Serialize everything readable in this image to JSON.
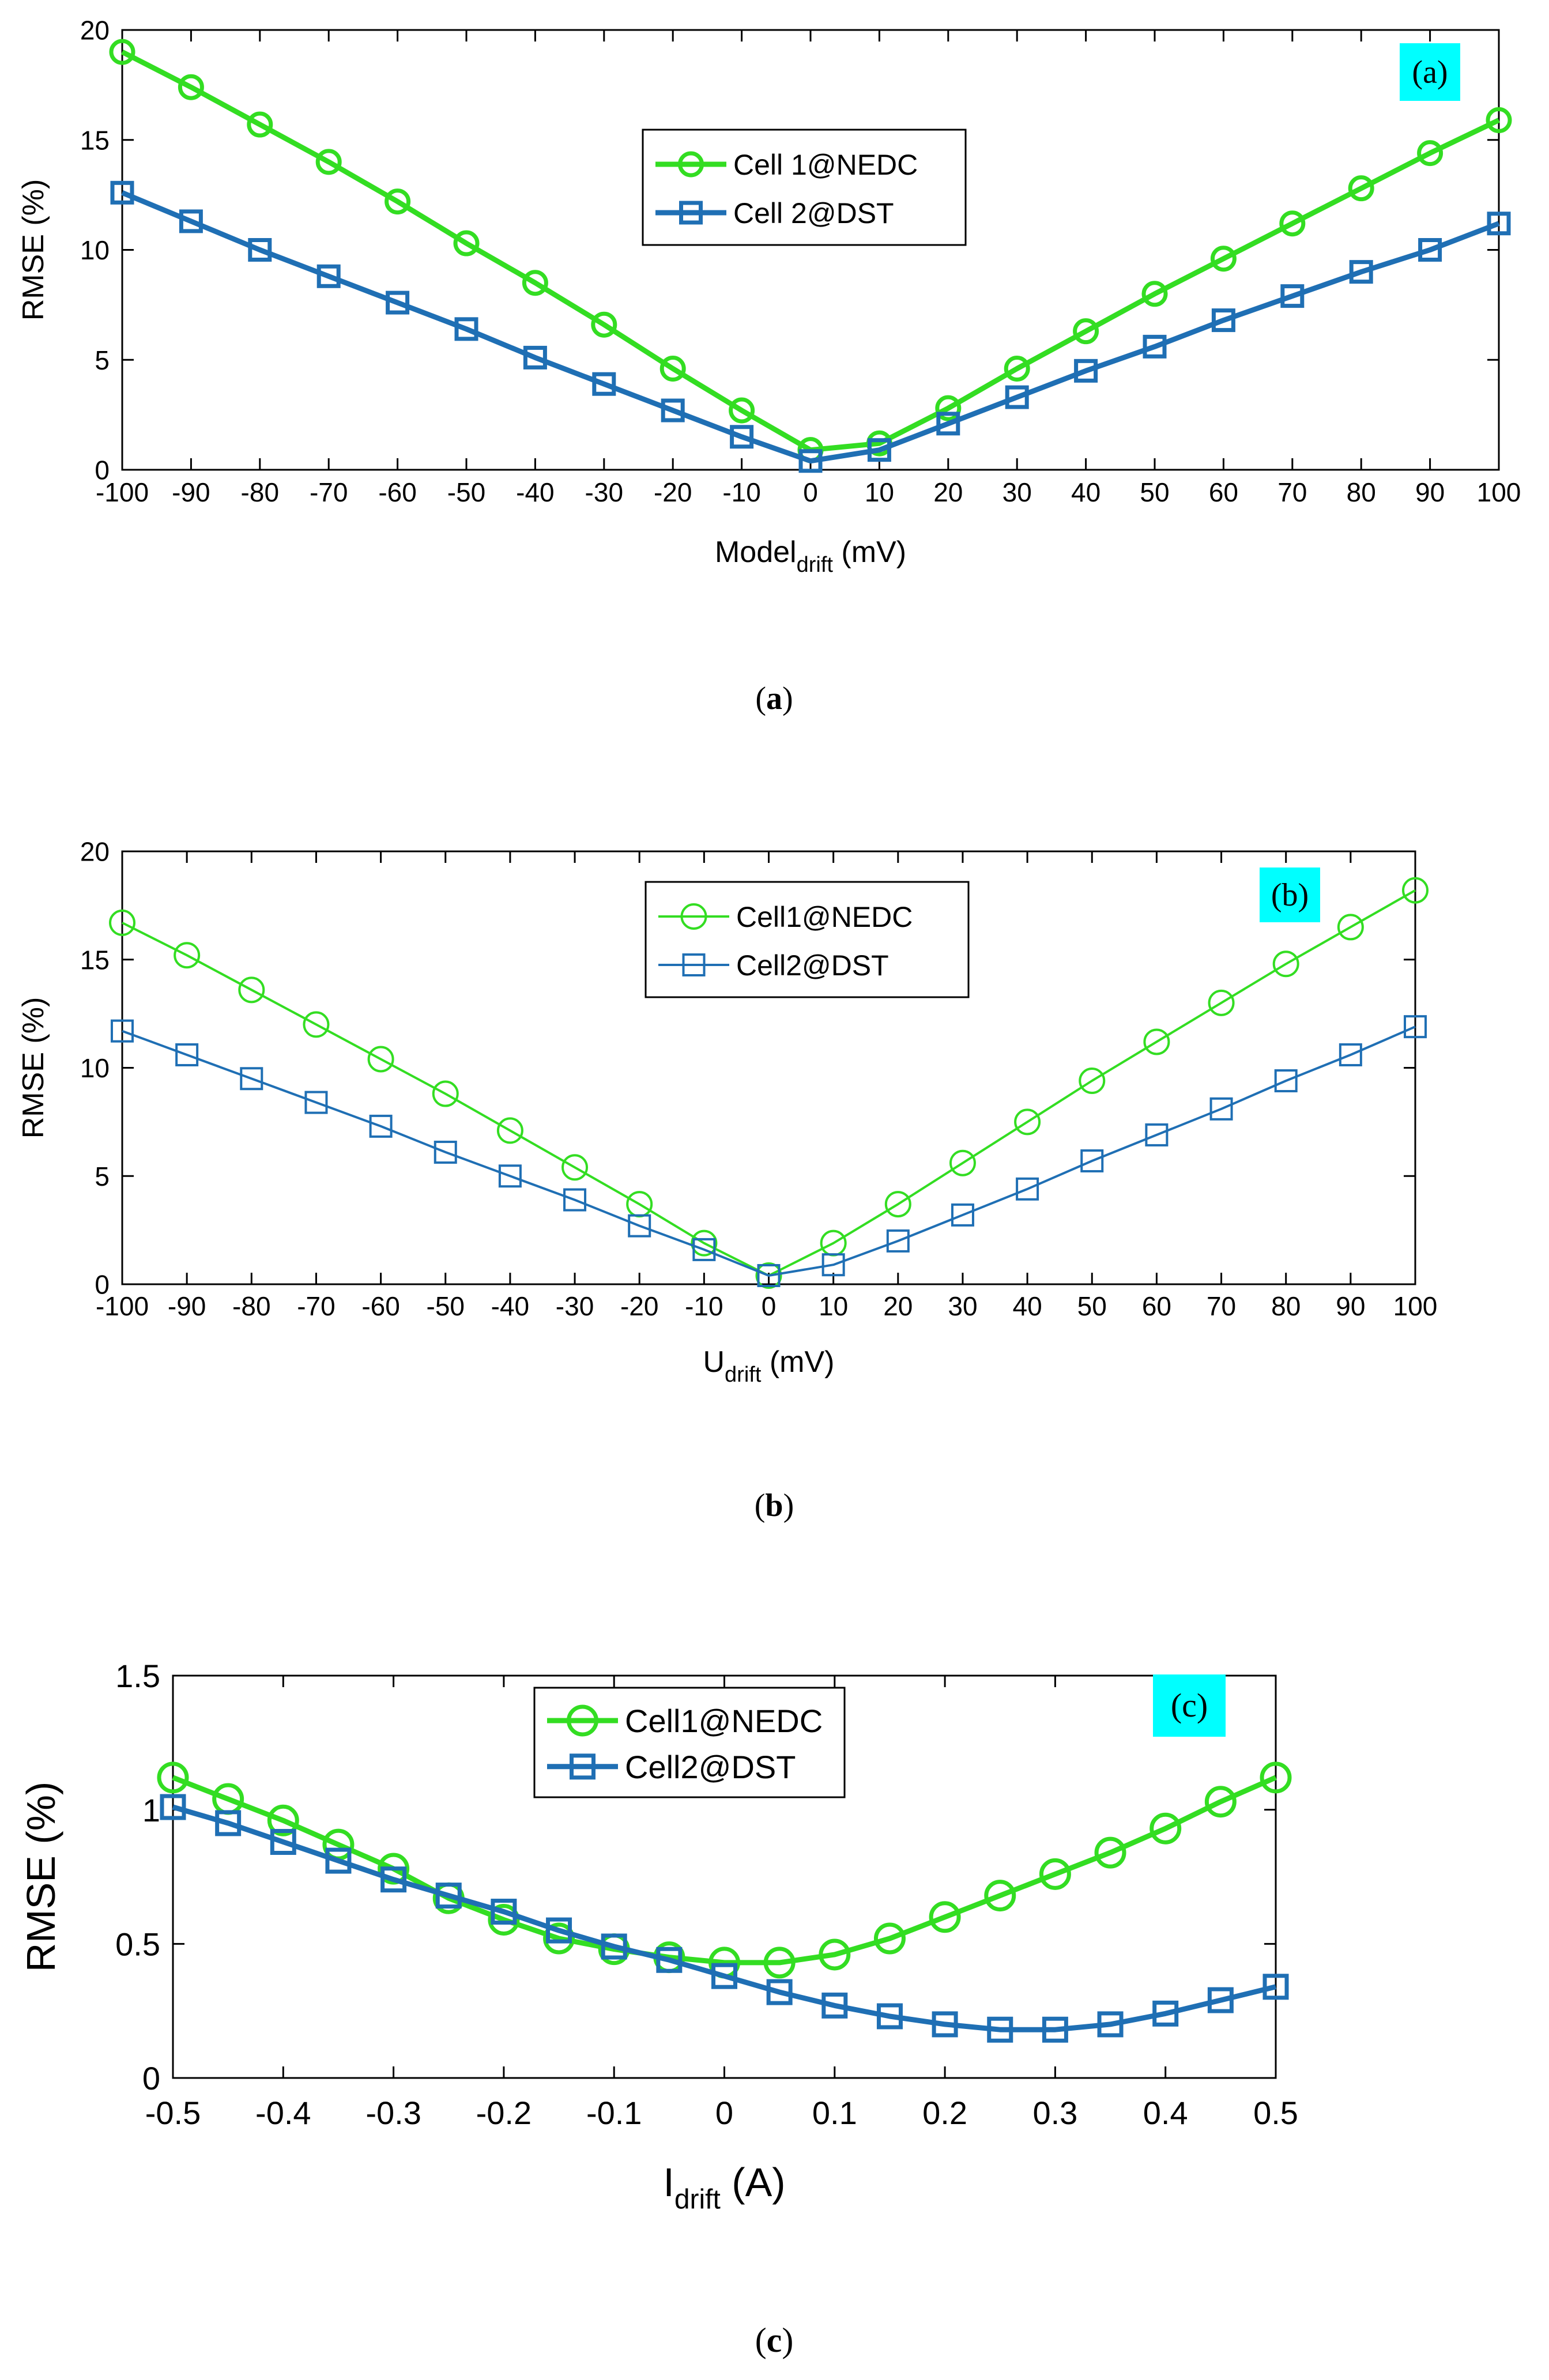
{
  "chart_data": [
    {
      "type": "line",
      "panel": "a",
      "caption": "a",
      "tag": "(a)",
      "tag_color": "#00ffff",
      "xlabel_main": "Model",
      "xlabel_sub": "drift",
      "xlabel_unit": " (mV)",
      "ylabel": "RMSE (%)",
      "xlim": [
        -100,
        100
      ],
      "ylim": [
        0,
        20
      ],
      "xticks": [
        -100,
        -90,
        -80,
        -70,
        -60,
        -50,
        -40,
        -30,
        -20,
        -10,
        0,
        10,
        20,
        30,
        40,
        50,
        60,
        70,
        80,
        90,
        100
      ],
      "yticks": [
        0,
        5,
        10,
        15,
        20
      ],
      "x": [
        -100,
        -90,
        -80,
        -70,
        -60,
        -50,
        -40,
        -30,
        -20,
        -10,
        0,
        10,
        20,
        30,
        40,
        50,
        60,
        70,
        80,
        90,
        100
      ],
      "legend_position": "top-center",
      "series": [
        {
          "name": "Cell 1@NEDC",
          "color": "#33dd22",
          "marker": "circle",
          "values": [
            19.0,
            17.4,
            15.7,
            14.0,
            12.2,
            10.3,
            8.5,
            6.6,
            4.6,
            2.7,
            0.9,
            1.2,
            2.8,
            4.6,
            6.3,
            8.0,
            9.6,
            11.2,
            12.8,
            14.4,
            15.9
          ]
        },
        {
          "name": "Cell 2@DST",
          "color": "#1f6fb4",
          "marker": "square",
          "values": [
            12.6,
            11.3,
            10.0,
            8.8,
            7.6,
            6.4,
            5.1,
            3.9,
            2.7,
            1.5,
            0.4,
            0.9,
            2.1,
            3.3,
            4.5,
            5.6,
            6.8,
            7.9,
            9.0,
            10.0,
            11.2
          ]
        }
      ]
    },
    {
      "type": "line",
      "panel": "b",
      "caption": "b",
      "tag": "(b)",
      "tag_color": "#00ffff",
      "xlabel_main": "U",
      "xlabel_sub": "drift",
      "xlabel_unit": " (mV)",
      "ylabel": "RMSE (%)",
      "xlim": [
        -100,
        100
      ],
      "ylim": [
        0,
        20
      ],
      "xticks": [
        -100,
        -90,
        -80,
        -70,
        -60,
        -50,
        -40,
        -30,
        -20,
        -10,
        0,
        10,
        20,
        30,
        40,
        50,
        60,
        70,
        80,
        90,
        100
      ],
      "yticks": [
        0,
        5,
        10,
        15,
        20
      ],
      "x": [
        -100,
        -90,
        -80,
        -70,
        -60,
        -50,
        -40,
        -30,
        -20,
        -10,
        0,
        10,
        20,
        30,
        40,
        50,
        60,
        70,
        80,
        90,
        100
      ],
      "legend_position": "top-center",
      "series": [
        {
          "name": "Cell1@NEDC",
          "color": "#33dd22",
          "marker": "circle",
          "values": [
            16.7,
            15.2,
            13.6,
            12.0,
            10.4,
            8.8,
            7.1,
            5.4,
            3.7,
            1.9,
            0.4,
            1.9,
            3.7,
            5.6,
            7.5,
            9.4,
            11.2,
            13.0,
            14.8,
            16.5,
            18.2
          ]
        },
        {
          "name": "Cell2@DST",
          "color": "#1f6fb4",
          "marker": "square",
          "values": [
            11.7,
            10.6,
            9.5,
            8.4,
            7.3,
            6.1,
            5.0,
            3.9,
            2.7,
            1.6,
            0.4,
            0.9,
            2.0,
            3.2,
            4.4,
            5.7,
            6.9,
            8.1,
            9.4,
            10.6,
            11.9
          ]
        }
      ]
    },
    {
      "type": "line",
      "panel": "c",
      "caption": "c",
      "tag": "(c)",
      "tag_color": "#00ffff",
      "xlabel_main": "I",
      "xlabel_sub": "drift",
      "xlabel_unit": " (A)",
      "ylabel": "RMSE (%)",
      "xlim": [
        -0.5,
        0.5
      ],
      "ylim": [
        0,
        1.5
      ],
      "xticks": [
        -0.5,
        -0.4,
        -0.3,
        -0.2,
        -0.1,
        0,
        0.1,
        0.2,
        0.3,
        0.4,
        0.5
      ],
      "yticks": [
        0,
        0.5,
        1,
        1.5
      ],
      "x": [
        -0.5,
        -0.45,
        -0.4,
        -0.35,
        -0.3,
        -0.25,
        -0.2,
        -0.15,
        -0.1,
        -0.05,
        0,
        0.05,
        0.1,
        0.15,
        0.2,
        0.25,
        0.3,
        0.35,
        0.4,
        0.45,
        0.5
      ],
      "legend_position": "top-center",
      "series": [
        {
          "name": "Cell1@NEDC",
          "color": "#33dd22",
          "marker": "circle",
          "values": [
            1.12,
            1.04,
            0.96,
            0.87,
            0.78,
            0.67,
            0.59,
            0.52,
            0.48,
            0.45,
            0.43,
            0.43,
            0.46,
            0.52,
            0.6,
            0.68,
            0.76,
            0.84,
            0.93,
            1.03,
            1.12
          ]
        },
        {
          "name": "Cell2@DST",
          "color": "#1f6fb4",
          "marker": "square",
          "values": [
            1.01,
            0.95,
            0.88,
            0.81,
            0.74,
            0.68,
            0.62,
            0.55,
            0.49,
            0.44,
            0.38,
            0.32,
            0.27,
            0.23,
            0.2,
            0.18,
            0.18,
            0.2,
            0.24,
            0.29,
            0.34
          ]
        }
      ]
    }
  ]
}
